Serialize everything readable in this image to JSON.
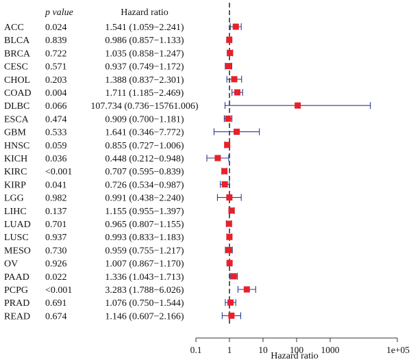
{
  "chart_data": {
    "type": "forest",
    "xlabel": "Hazard ratio",
    "x_scale": "log10",
    "xlim": [
      0.1,
      100000
    ],
    "reference_line": 1,
    "xtick_labels": [
      "0.1",
      "1",
      "10",
      "100",
      "1000",
      "1e+05"
    ],
    "xtick_values": [
      0.1,
      1,
      10,
      100,
      1000,
      100000
    ],
    "column_headers": {
      "pvalue": "p value",
      "hr": "Hazard ratio"
    },
    "colors": {
      "marker": "#e8202a",
      "whisker": "#2a3a8c",
      "refline": "#333333",
      "axis": "#333333"
    },
    "rows": [
      {
        "label": "ACC",
        "p": "0.024",
        "hr_text": "1.541 (1.059−2.241)",
        "hr": 1.541,
        "lo": 1.059,
        "hi": 2.241
      },
      {
        "label": "BLCA",
        "p": "0.839",
        "hr_text": "0.986 (0.857−1.133)",
        "hr": 0.986,
        "lo": 0.857,
        "hi": 1.133
      },
      {
        "label": "BRCA",
        "p": "0.722",
        "hr_text": "1.035 (0.858−1.247)",
        "hr": 1.035,
        "lo": 0.858,
        "hi": 1.247
      },
      {
        "label": "CESC",
        "p": "0.571",
        "hr_text": "0.937 (0.749−1.172)",
        "hr": 0.937,
        "lo": 0.749,
        "hi": 1.172
      },
      {
        "label": "CHOL",
        "p": "0.203",
        "hr_text": "1.388 (0.837−2.301)",
        "hr": 1.388,
        "lo": 0.837,
        "hi": 2.301
      },
      {
        "label": "COAD",
        "p": "0.004",
        "hr_text": "1.711 (1.185−2.469)",
        "hr": 1.711,
        "lo": 1.185,
        "hi": 2.469
      },
      {
        "label": "DLBC",
        "p": "0.066",
        "hr_text": "107.734 (0.736−15761.006)",
        "hr": 107.734,
        "lo": 0.736,
        "hi": 15761.006
      },
      {
        "label": "ESCA",
        "p": "0.474",
        "hr_text": "0.909 (0.700−1.181)",
        "hr": 0.909,
        "lo": 0.7,
        "hi": 1.181
      },
      {
        "label": "GBM",
        "p": "0.533",
        "hr_text": "1.641 (0.346−7.772)",
        "hr": 1.641,
        "lo": 0.346,
        "hi": 7.772
      },
      {
        "label": "HNSC",
        "p": "0.059",
        "hr_text": "0.855 (0.727−1.006)",
        "hr": 0.855,
        "lo": 0.727,
        "hi": 1.006
      },
      {
        "label": "KICH",
        "p": "0.036",
        "hr_text": "0.448 (0.212−0.948)",
        "hr": 0.448,
        "lo": 0.212,
        "hi": 0.948
      },
      {
        "label": "KIRC",
        "p": "<0.001",
        "hr_text": "0.707 (0.595−0.839)",
        "hr": 0.707,
        "lo": 0.595,
        "hi": 0.839
      },
      {
        "label": "KIRP",
        "p": "0.041",
        "hr_text": "0.726 (0.534−0.987)",
        "hr": 0.726,
        "lo": 0.534,
        "hi": 0.987
      },
      {
        "label": "LGG",
        "p": "0.982",
        "hr_text": "0.991 (0.438−2.240)",
        "hr": 0.991,
        "lo": 0.438,
        "hi": 2.24
      },
      {
        "label": "LIHC",
        "p": "0.137",
        "hr_text": "1.155 (0.955−1.397)",
        "hr": 1.155,
        "lo": 0.955,
        "hi": 1.397
      },
      {
        "label": "LUAD",
        "p": "0.701",
        "hr_text": "0.965 (0.807−1.155)",
        "hr": 0.965,
        "lo": 0.807,
        "hi": 1.155
      },
      {
        "label": "LUSC",
        "p": "0.937",
        "hr_text": "0.993 (0.833−1.183)",
        "hr": 0.993,
        "lo": 0.833,
        "hi": 1.183
      },
      {
        "label": "MESO",
        "p": "0.730",
        "hr_text": "0.959 (0.755−1.217)",
        "hr": 0.959,
        "lo": 0.755,
        "hi": 1.217
      },
      {
        "label": "OV",
        "p": "0.926",
        "hr_text": "1.007 (0.867−1.170)",
        "hr": 1.007,
        "lo": 0.867,
        "hi": 1.17
      },
      {
        "label": "PAAD",
        "p": "0.022",
        "hr_text": "1.336 (1.043−1.713)",
        "hr": 1.336,
        "lo": 1.043,
        "hi": 1.713
      },
      {
        "label": "PCPG",
        "p": "<0.001",
        "hr_text": "3.283 (1.788−6.026)",
        "hr": 3.283,
        "lo": 1.788,
        "hi": 6.026
      },
      {
        "label": "PRAD",
        "p": "0.691",
        "hr_text": "1.076 (0.750−1.544)",
        "hr": 1.076,
        "lo": 0.75,
        "hi": 1.544
      },
      {
        "label": "READ",
        "p": "0.674",
        "hr_text": "1.146 (0.607−2.166)",
        "hr": 1.146,
        "lo": 0.607,
        "hi": 2.166
      }
    ]
  }
}
